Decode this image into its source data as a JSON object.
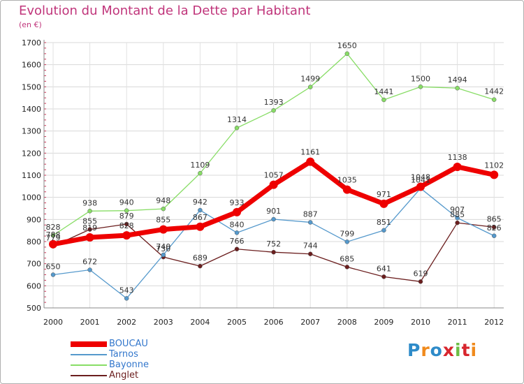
{
  "title": "Evolution du Montant de la Dette par Habitant",
  "subtitle": "(en €)",
  "logo_text": "Proxiti",
  "logo_colors": [
    "#2e8bc9",
    "#f08a1c",
    "#2e8bc9",
    "#d8262e",
    "#6cbe45",
    "#d8262e",
    "#f08a1c"
  ],
  "chart_data": {
    "type": "line",
    "title": "Evolution du Montant de la Dette par Habitant",
    "subtitle": "(en €)",
    "x": [
      "2000",
      "2001",
      "2002",
      "2003",
      "2004",
      "2005",
      "2006",
      "2007",
      "2008",
      "2009",
      "2010",
      "2011",
      "2012"
    ],
    "ylim": [
      500,
      1700
    ],
    "yticks": [
      "500",
      "600",
      "700",
      "800",
      "900",
      "1000",
      "1100",
      "1200",
      "1300",
      "1400",
      "1500",
      "1600",
      "1700"
    ],
    "grid": true,
    "legend_position": "bottom-left",
    "series": [
      {
        "name": "BOUCAU",
        "color": "#ee0000",
        "values": [
          788,
          819,
          828,
          855,
          867,
          933,
          1057,
          1161,
          1035,
          971,
          1048,
          1138,
          1102
        ]
      },
      {
        "name": "Tarnos",
        "color": "#5599cc",
        "values": [
          650,
          672,
          543,
          740,
          942,
          840,
          901,
          887,
          799,
          851,
          1041,
          907,
          826
        ]
      },
      {
        "name": "Bayonne",
        "color": "#88dd66",
        "values": [
          828,
          938,
          940,
          948,
          1109,
          1314,
          1393,
          1499,
          1650,
          1441,
          1500,
          1494,
          1442
        ]
      },
      {
        "name": "Anglet",
        "color": "#6b1e1e",
        "values": [
          779,
          855,
          879,
          730,
          689,
          766,
          752,
          744,
          685,
          641,
          619,
          885,
          865
        ]
      }
    ]
  }
}
